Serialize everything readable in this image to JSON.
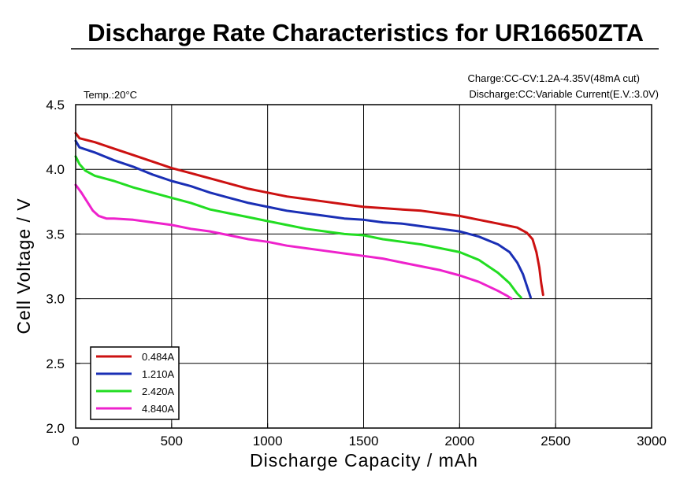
{
  "chart_data": {
    "type": "line",
    "title": "Discharge Rate Characteristics for UR16650ZTA",
    "notes": {
      "temp": "Temp.:20°C",
      "charge": "Charge:CC-CV:1.2A-4.35V(48mA cut)",
      "discharge": "Discharge:CC:Variable Current(E.V.:3.0V)"
    },
    "xlabel": "Discharge Capacity / mAh",
    "ylabel": "Cell Voltage / V",
    "xlim": [
      0,
      3000
    ],
    "ylim": [
      2.0,
      4.5
    ],
    "xticks": [
      "0",
      "500",
      "1000",
      "1500",
      "2000",
      "2500",
      "3000"
    ],
    "yticks": [
      "2.0",
      "2.5",
      "3.0",
      "3.5",
      "4.0",
      "4.5"
    ],
    "grid": true,
    "legend_position": "bottom-left",
    "series": [
      {
        "name": "0.484A",
        "color": "#cc1111",
        "points": [
          [
            0,
            4.28
          ],
          [
            20,
            4.24
          ],
          [
            100,
            4.21
          ],
          [
            200,
            4.16
          ],
          [
            300,
            4.11
          ],
          [
            400,
            4.06
          ],
          [
            500,
            4.01
          ],
          [
            600,
            3.97
          ],
          [
            700,
            3.93
          ],
          [
            800,
            3.89
          ],
          [
            900,
            3.85
          ],
          [
            1000,
            3.82
          ],
          [
            1100,
            3.79
          ],
          [
            1200,
            3.77
          ],
          [
            1300,
            3.75
          ],
          [
            1400,
            3.73
          ],
          [
            1500,
            3.71
          ],
          [
            1600,
            3.7
          ],
          [
            1700,
            3.69
          ],
          [
            1800,
            3.68
          ],
          [
            1900,
            3.66
          ],
          [
            2000,
            3.64
          ],
          [
            2100,
            3.61
          ],
          [
            2200,
            3.58
          ],
          [
            2300,
            3.55
          ],
          [
            2350,
            3.51
          ],
          [
            2380,
            3.46
          ],
          [
            2400,
            3.36
          ],
          [
            2415,
            3.24
          ],
          [
            2425,
            3.12
          ],
          [
            2435,
            3.03
          ]
        ]
      },
      {
        "name": "1.210A",
        "color": "#1a2fb5",
        "points": [
          [
            0,
            4.22
          ],
          [
            20,
            4.17
          ],
          [
            100,
            4.13
          ],
          [
            200,
            4.07
          ],
          [
            300,
            4.02
          ],
          [
            400,
            3.96
          ],
          [
            500,
            3.91
          ],
          [
            600,
            3.87
          ],
          [
            700,
            3.82
          ],
          [
            800,
            3.78
          ],
          [
            900,
            3.74
          ],
          [
            1000,
            3.71
          ],
          [
            1100,
            3.68
          ],
          [
            1200,
            3.66
          ],
          [
            1300,
            3.64
          ],
          [
            1400,
            3.62
          ],
          [
            1500,
            3.61
          ],
          [
            1600,
            3.59
          ],
          [
            1700,
            3.58
          ],
          [
            1800,
            3.56
          ],
          [
            1900,
            3.54
          ],
          [
            2000,
            3.52
          ],
          [
            2100,
            3.48
          ],
          [
            2200,
            3.42
          ],
          [
            2260,
            3.36
          ],
          [
            2300,
            3.28
          ],
          [
            2330,
            3.19
          ],
          [
            2350,
            3.1
          ],
          [
            2370,
            3.01
          ]
        ]
      },
      {
        "name": "2.420A",
        "color": "#22dd22",
        "points": [
          [
            0,
            4.1
          ],
          [
            20,
            4.04
          ],
          [
            50,
            3.99
          ],
          [
            100,
            3.95
          ],
          [
            200,
            3.91
          ],
          [
            300,
            3.86
          ],
          [
            400,
            3.82
          ],
          [
            500,
            3.78
          ],
          [
            600,
            3.74
          ],
          [
            700,
            3.69
          ],
          [
            800,
            3.66
          ],
          [
            900,
            3.63
          ],
          [
            1000,
            3.6
          ],
          [
            1100,
            3.57
          ],
          [
            1200,
            3.54
          ],
          [
            1300,
            3.52
          ],
          [
            1400,
            3.5
          ],
          [
            1500,
            3.49
          ],
          [
            1600,
            3.46
          ],
          [
            1700,
            3.44
          ],
          [
            1800,
            3.42
          ],
          [
            1900,
            3.39
          ],
          [
            2000,
            3.36
          ],
          [
            2100,
            3.3
          ],
          [
            2200,
            3.2
          ],
          [
            2260,
            3.12
          ],
          [
            2300,
            3.04
          ],
          [
            2320,
            3.01
          ]
        ]
      },
      {
        "name": "4.840A",
        "color": "#ee22cc",
        "points": [
          [
            0,
            3.88
          ],
          [
            30,
            3.82
          ],
          [
            60,
            3.75
          ],
          [
            90,
            3.68
          ],
          [
            120,
            3.64
          ],
          [
            160,
            3.62
          ],
          [
            200,
            3.62
          ],
          [
            300,
            3.61
          ],
          [
            400,
            3.59
          ],
          [
            500,
            3.57
          ],
          [
            600,
            3.54
          ],
          [
            700,
            3.52
          ],
          [
            800,
            3.49
          ],
          [
            900,
            3.46
          ],
          [
            1000,
            3.44
          ],
          [
            1100,
            3.41
          ],
          [
            1200,
            3.39
          ],
          [
            1300,
            3.37
          ],
          [
            1400,
            3.35
          ],
          [
            1500,
            3.33
          ],
          [
            1600,
            3.31
          ],
          [
            1700,
            3.28
          ],
          [
            1800,
            3.25
          ],
          [
            1900,
            3.22
          ],
          [
            2000,
            3.18
          ],
          [
            2100,
            3.13
          ],
          [
            2200,
            3.06
          ],
          [
            2250,
            3.02
          ],
          [
            2270,
            3.0
          ]
        ]
      }
    ]
  }
}
